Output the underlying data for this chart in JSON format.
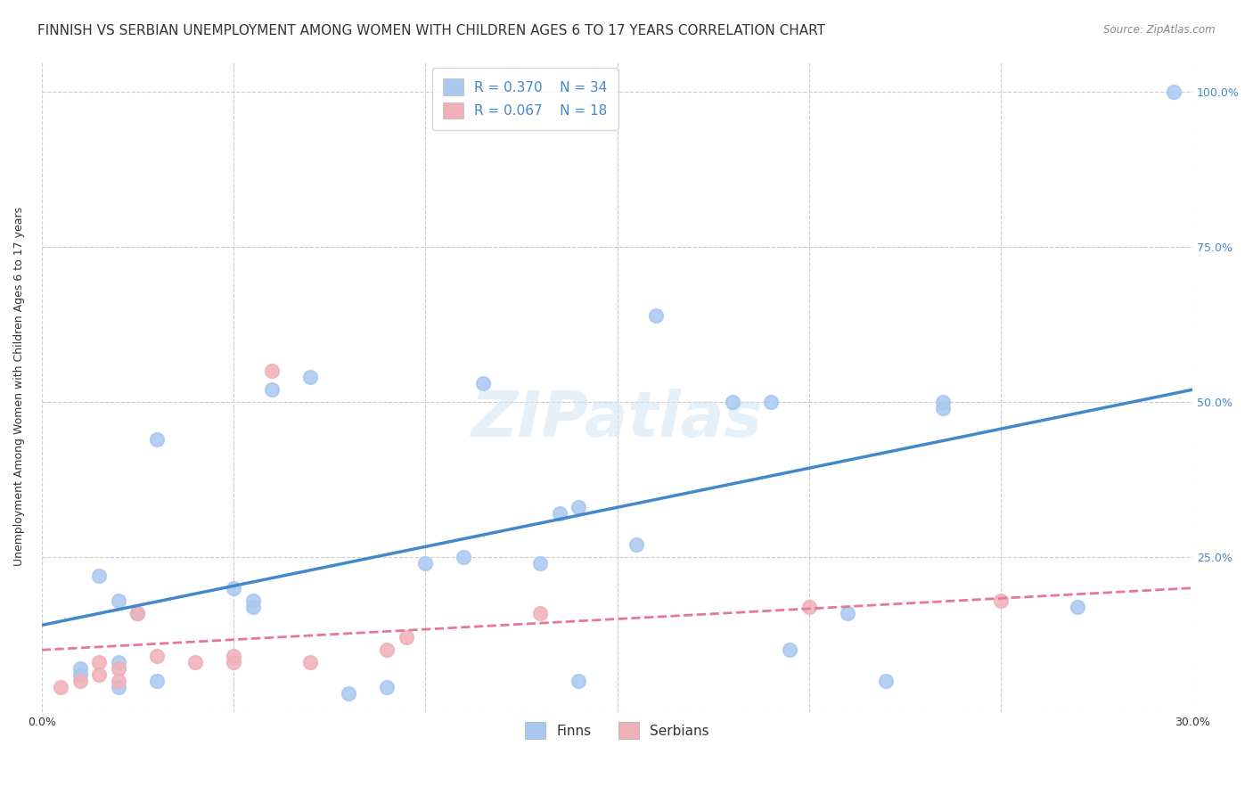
{
  "title": "FINNISH VS SERBIAN UNEMPLOYMENT AMONG WOMEN WITH CHILDREN AGES 6 TO 17 YEARS CORRELATION CHART",
  "source": "Source: ZipAtlas.com",
  "xlabel": "",
  "ylabel": "Unemployment Among Women with Children Ages 6 to 17 years",
  "xlim": [
    0.0,
    0.3
  ],
  "ylim": [
    0.0,
    1.05
  ],
  "xticks": [
    0.0,
    0.05,
    0.1,
    0.15,
    0.2,
    0.25,
    0.3
  ],
  "xtick_labels": [
    "0.0%",
    "",
    "",
    "",
    "",
    "",
    "30.0%"
  ],
  "yticks": [
    0.0,
    0.25,
    0.5,
    0.75,
    1.0
  ],
  "ytick_labels": [
    "",
    "25.0%",
    "50.0%",
    "75.0%",
    "100.0%"
  ],
  "background_color": "#ffffff",
  "grid_color": "#cccccc",
  "watermark": "ZIPatlas",
  "legend_R1": "R = 0.370",
  "legend_N1": "N = 34",
  "legend_R2": "R = 0.067",
  "legend_N2": "N = 18",
  "finn_color": "#a8c8f0",
  "serb_color": "#f0b0b8",
  "finn_line_color": "#4488cc",
  "serb_line_color": "#e87890",
  "finn_scatter_x": [
    0.02,
    0.03,
    0.01,
    0.01,
    0.02,
    0.025,
    0.02,
    0.015,
    0.03,
    0.05,
    0.055,
    0.055,
    0.06,
    0.07,
    0.08,
    0.09,
    0.1,
    0.11,
    0.115,
    0.13,
    0.135,
    0.14,
    0.14,
    0.155,
    0.16,
    0.18,
    0.19,
    0.195,
    0.21,
    0.22,
    0.235,
    0.235,
    0.27,
    0.295
  ],
  "finn_scatter_y": [
    0.04,
    0.05,
    0.06,
    0.07,
    0.08,
    0.16,
    0.18,
    0.22,
    0.44,
    0.2,
    0.18,
    0.17,
    0.52,
    0.54,
    0.03,
    0.04,
    0.24,
    0.25,
    0.53,
    0.24,
    0.32,
    0.05,
    0.33,
    0.27,
    0.64,
    0.5,
    0.5,
    0.1,
    0.16,
    0.05,
    0.49,
    0.5,
    0.17,
    1.0
  ],
  "serb_scatter_x": [
    0.005,
    0.01,
    0.015,
    0.015,
    0.02,
    0.02,
    0.025,
    0.03,
    0.04,
    0.05,
    0.05,
    0.06,
    0.07,
    0.09,
    0.095,
    0.13,
    0.2,
    0.25
  ],
  "serb_scatter_y": [
    0.04,
    0.05,
    0.06,
    0.08,
    0.05,
    0.07,
    0.16,
    0.09,
    0.08,
    0.08,
    0.09,
    0.55,
    0.08,
    0.1,
    0.12,
    0.16,
    0.17,
    0.18
  ],
  "finn_trendline_x": [
    0.0,
    0.3
  ],
  "finn_trendline_y": [
    0.14,
    0.52
  ],
  "serb_trendline_x": [
    0.0,
    0.3
  ],
  "serb_trendline_y": [
    0.1,
    0.2
  ],
  "title_fontsize": 11,
  "axis_label_fontsize": 9,
  "tick_fontsize": 9,
  "legend_fontsize": 11
}
